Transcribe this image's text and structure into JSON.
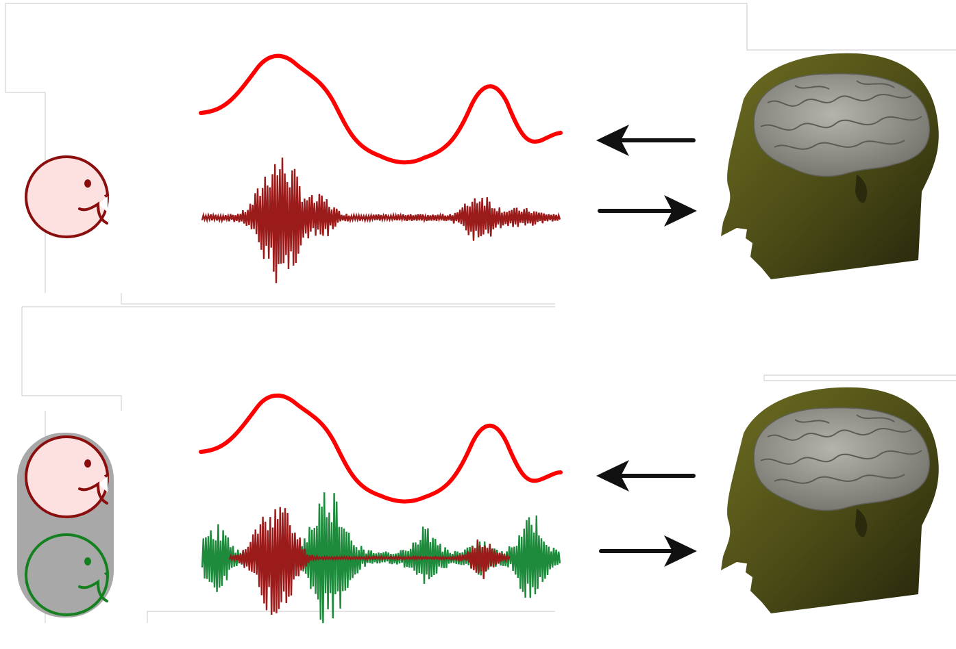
{
  "colors": {
    "envelope": "#ff0000",
    "speaker_a": "#9b1b1b",
    "speaker_a_outline": "#8b0e0e",
    "speaker_a_face": "#fde0e0",
    "speaker_b": "#1e8a3c",
    "speaker_b_outline": "#14801f",
    "group_background": "#a8a8a8",
    "arrow": "#111111",
    "head_skin": "#5a5a1e",
    "brain": "#8e8e86",
    "frame": "#c8c8c8"
  },
  "panels": [
    {
      "scene": "single-talker",
      "speakers": [
        {
          "icon": "talker-face-icon",
          "color": "speaker_a"
        }
      ],
      "signals": [
        "speech-envelope",
        "audio-waveform-speaker-a"
      ],
      "arrows": [
        "envelope-from-brain",
        "sound-to-listener"
      ],
      "listener": "head-with-brain-icon"
    },
    {
      "scene": "two-talkers",
      "speakers": [
        {
          "icon": "talker-face-icon",
          "color": "speaker_a"
        },
        {
          "icon": "talker-face-icon",
          "color": "speaker_b"
        }
      ],
      "signals": [
        "speech-envelope",
        "audio-waveform-speaker-a",
        "audio-waveform-speaker-b"
      ],
      "arrows": [
        "envelope-from-brain",
        "sound-to-listener"
      ],
      "listener": "head-with-brain-icon"
    }
  ]
}
